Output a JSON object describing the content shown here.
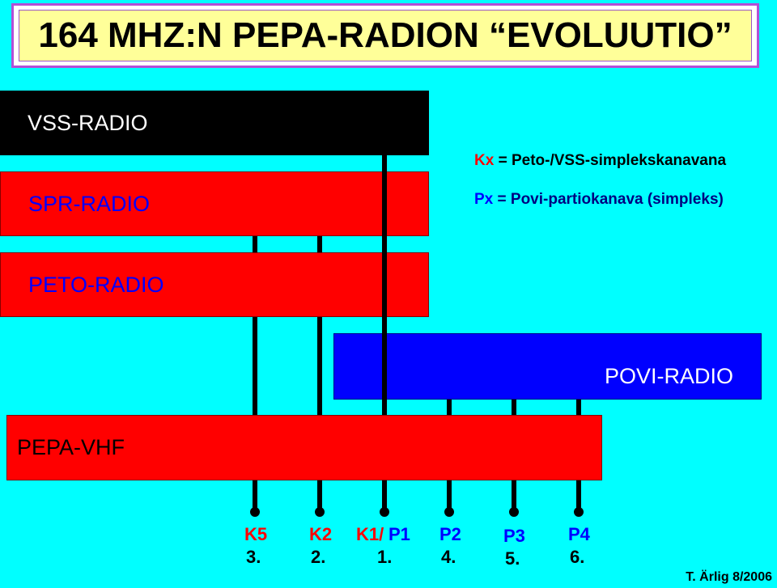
{
  "title": "164 MHZ:N PEPA-RADION “EVOLUUTIO”",
  "boxes": {
    "vss": "VSS-RADIO",
    "spr": "SPR-RADIO",
    "peto": "PETO-RADIO",
    "povi": "POVI-RADIO",
    "pepa": "PEPA-VHF"
  },
  "legend": {
    "k_code": "Kx",
    "k_text": " = Peto-/VSS-simplekskanavana",
    "p_code": "Px",
    "p_text": " = Povi-partiokanava (simpleks)"
  },
  "channels": [
    {
      "label": "K5",
      "number": "3."
    },
    {
      "label": "K2",
      "number": "2."
    },
    {
      "label_k": "K1/",
      "label_p": " P1",
      "number": "1."
    },
    {
      "label": "P2",
      "number": "4."
    },
    {
      "label": "P3",
      "number": "5."
    },
    {
      "label": "P4",
      "number": "6."
    }
  ],
  "author": "T. Ärlig 8/2006"
}
